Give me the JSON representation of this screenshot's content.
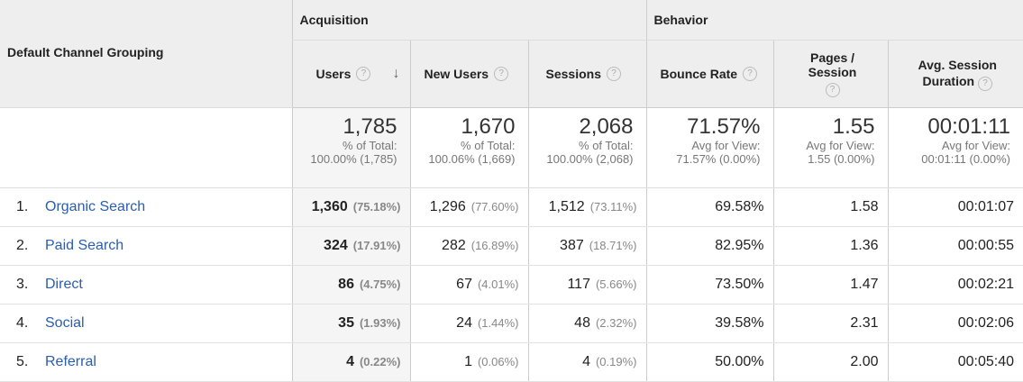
{
  "header": {
    "dimension_label": "Default Channel Grouping",
    "group_acquisition": "Acquisition",
    "group_behavior": "Behavior",
    "columns": {
      "users": "Users",
      "new_users": "New Users",
      "sessions": "Sessions",
      "bounce_rate": "Bounce Rate",
      "pages_session": "Pages / Session",
      "avg_duration_l1": "Avg. Session",
      "avg_duration_l2": "Duration"
    },
    "help_glyph": "?",
    "sort_glyph": "↓"
  },
  "totals": {
    "users": {
      "value": "1,785",
      "l1": "% of Total:",
      "l2": "100.00% (1,785)"
    },
    "new_users": {
      "value": "1,670",
      "l1": "% of Total:",
      "l2": "100.06% (1,669)"
    },
    "sessions": {
      "value": "2,068",
      "l1": "% of Total:",
      "l2": "100.00% (2,068)"
    },
    "bounce_rate": {
      "value": "71.57%",
      "l1": "Avg for View:",
      "l2": "71.57% (0.00%)"
    },
    "pages_session": {
      "value": "1.55",
      "l1": "Avg for View:",
      "l2": "1.55 (0.00%)"
    },
    "avg_duration": {
      "value": "00:01:11",
      "l1": "Avg for View:",
      "l2": "00:01:11 (0.00%)"
    }
  },
  "rows": [
    {
      "index": "1.",
      "channel": "Organic Search",
      "users": "1,360",
      "users_pct": "(75.18%)",
      "new_users": "1,296",
      "new_users_pct": "(77.60%)",
      "sessions": "1,512",
      "sessions_pct": "(73.11%)",
      "bounce_rate": "69.58%",
      "pages_session": "1.58",
      "avg_duration": "00:01:07"
    },
    {
      "index": "2.",
      "channel": "Paid Search",
      "users": "324",
      "users_pct": "(17.91%)",
      "new_users": "282",
      "new_users_pct": "(16.89%)",
      "sessions": "387",
      "sessions_pct": "(18.71%)",
      "bounce_rate": "82.95%",
      "pages_session": "1.36",
      "avg_duration": "00:00:55"
    },
    {
      "index": "3.",
      "channel": "Direct",
      "users": "86",
      "users_pct": "(4.75%)",
      "new_users": "67",
      "new_users_pct": "(4.01%)",
      "sessions": "117",
      "sessions_pct": "(5.66%)",
      "bounce_rate": "73.50%",
      "pages_session": "1.47",
      "avg_duration": "00:02:21"
    },
    {
      "index": "4.",
      "channel": "Social",
      "users": "35",
      "users_pct": "(1.93%)",
      "new_users": "24",
      "new_users_pct": "(1.44%)",
      "sessions": "48",
      "sessions_pct": "(2.32%)",
      "bounce_rate": "39.58%",
      "pages_session": "2.31",
      "avg_duration": "00:02:06"
    },
    {
      "index": "5.",
      "channel": "Referral",
      "users": "4",
      "users_pct": "(0.22%)",
      "new_users": "1",
      "new_users_pct": "(0.06%)",
      "sessions": "4",
      "sessions_pct": "(0.19%)",
      "bounce_rate": "50.00%",
      "pages_session": "2.00",
      "avg_duration": "00:05:40"
    }
  ]
}
